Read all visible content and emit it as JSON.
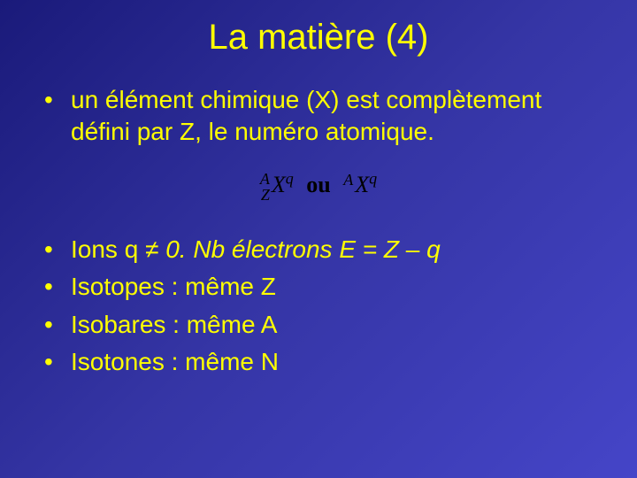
{
  "title": "La matière (4)",
  "bullets": {
    "b1": "un élément chimique (X) est complètement défini par Z, le numéro atomique.",
    "b2_prefix": "Ions q ",
    "b2_neq": "≠",
    "b2_mid": " 0.   Nb électrons E = Z ",
    "b2_minus": "–",
    "b2_suffix": " q",
    "b3": "Isotopes : même Z",
    "b4": "Isobares : même A",
    "b5": "Isotones : même N"
  },
  "formula": {
    "A": "A",
    "Z": "Z",
    "X": "X",
    "q": "q",
    "ou": "ou"
  },
  "colors": {
    "title": "#ffff00",
    "text": "#ffff00",
    "formula": "#000000",
    "bg_start": "#1a1a7a",
    "bg_end": "#4545c8"
  },
  "typography": {
    "title_fontsize": 40,
    "body_fontsize": 28,
    "formula_fontsize": 26,
    "font_family": "Comic Sans MS",
    "formula_font_family": "Times New Roman"
  }
}
